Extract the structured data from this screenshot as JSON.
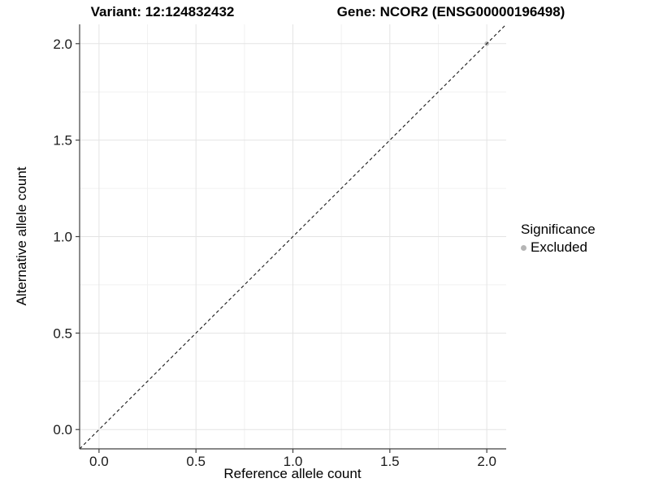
{
  "header": {
    "variant_title": "Variant: 12:124832432",
    "gene_title": "Gene: NCOR2 (ENSG00000196498)"
  },
  "chart_data": {
    "type": "scatter",
    "xlabel": "Reference allele count",
    "ylabel": "Alternative allele count",
    "xlim": [
      -0.1,
      2.1
    ],
    "ylim": [
      -0.1,
      2.1
    ],
    "xticks": [
      0,
      0.5,
      1,
      1.5,
      2
    ],
    "xtick_labels": [
      "0.0",
      "0.5",
      "1.0",
      "1.5",
      "2.0"
    ],
    "yticks": [
      0,
      0.5,
      1,
      1.5,
      2
    ],
    "ytick_labels": [
      "0.0",
      "0.5",
      "1.0",
      "1.5",
      "2.0"
    ],
    "x_minor_ticks": [
      0.25,
      0.75,
      1.25,
      1.75
    ],
    "y_minor_ticks": [
      0.25,
      0.75,
      1.25,
      1.75
    ],
    "grid": "major+minor",
    "points": [
      {
        "x": 2.0,
        "y": 2.0,
        "significance": "Excluded",
        "color": "#b5b5b5"
      }
    ],
    "reference_line": {
      "kind": "identity",
      "slope": 1,
      "intercept": 0,
      "linetype": "dashed",
      "color": "#1a1a1a"
    },
    "legend": {
      "position": "right",
      "title": "Significance",
      "entries": [
        {
          "label": "Excluded",
          "color": "#b5b5b5"
        }
      ]
    }
  }
}
